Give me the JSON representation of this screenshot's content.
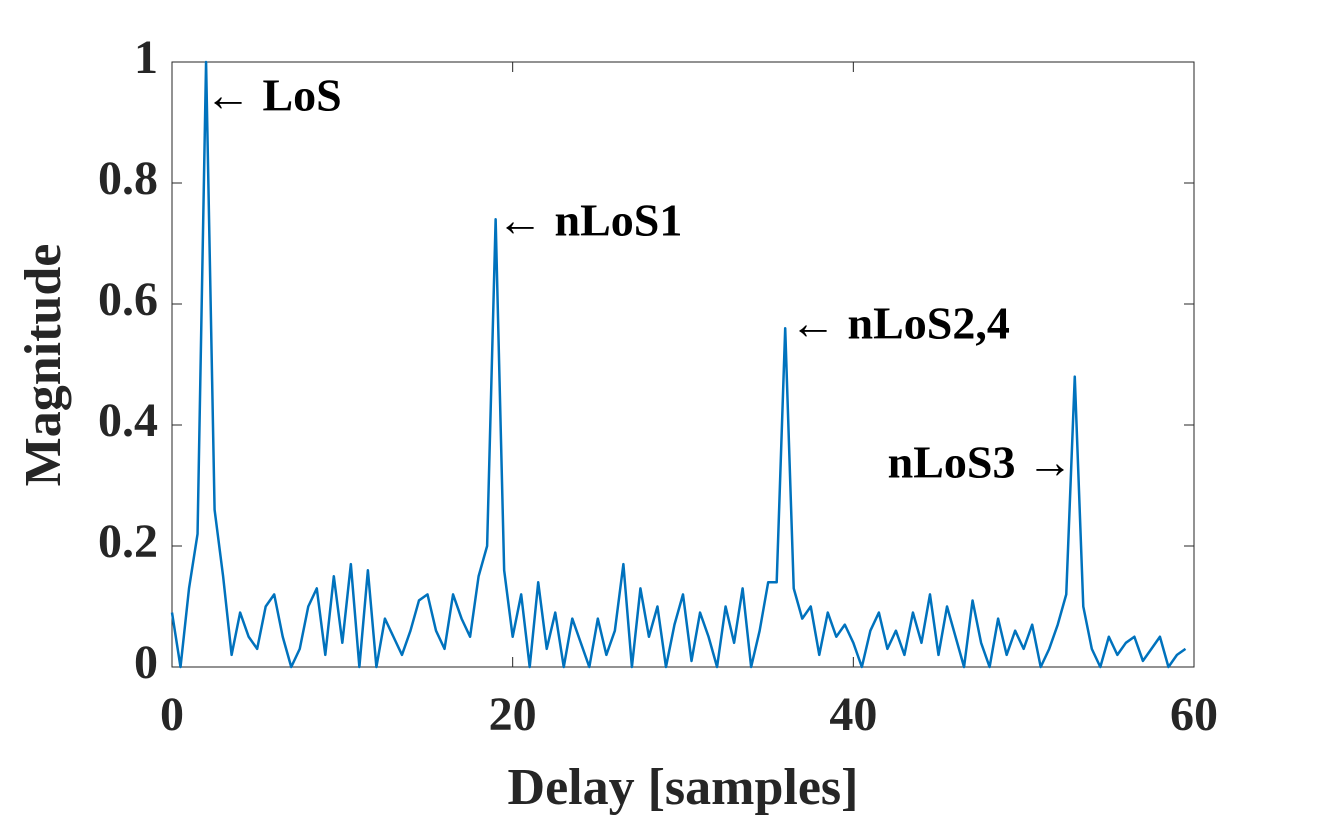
{
  "chart_data": {
    "type": "line",
    "xlabel": "Delay [samples]",
    "ylabel": "Magnitude",
    "annotations": [
      "← LoS",
      "← nLoS1",
      "← nLoS2,4",
      "nLoS3 →"
    ],
    "x": [
      0,
      0.5,
      1,
      1.5,
      2,
      2.5,
      3,
      3.5,
      4,
      4.5,
      5,
      5.5,
      6,
      6.5,
      7,
      7.5,
      8,
      8.5,
      9,
      9.5,
      10,
      10.5,
      11,
      11.5,
      12,
      12.5,
      13,
      13.5,
      14,
      14.5,
      15,
      15.5,
      16,
      16.5,
      17,
      17.5,
      18,
      18.5,
      19,
      19.5,
      20,
      20.5,
      21,
      21.5,
      22,
      22.5,
      23,
      23.5,
      24,
      24.5,
      25,
      25.5,
      26,
      26.5,
      27,
      27.5,
      28,
      28.5,
      29,
      29.5,
      30,
      30.5,
      31,
      31.5,
      32,
      32.5,
      33,
      33.5,
      34,
      34.5,
      35,
      35.5,
      36,
      36.5,
      37,
      37.5,
      38,
      38.5,
      39,
      39.5,
      40,
      40.5,
      41,
      41.5,
      42,
      42.5,
      43,
      43.5,
      44,
      44.5,
      45,
      45.5,
      46,
      46.5,
      47,
      47.5,
      48,
      48.5,
      49,
      49.5,
      50,
      50.5,
      51,
      51.5,
      52,
      52.5,
      53,
      53.5,
      54,
      54.5,
      55,
      55.5,
      56,
      56.5,
      57,
      57.5,
      58,
      58.5,
      59,
      59.5
    ],
    "series": [
      {
        "color": "#0072bd",
        "values": [
          0.09,
          0.0,
          0.13,
          0.22,
          1.0,
          0.26,
          0.15,
          0.02,
          0.09,
          0.05,
          0.03,
          0.1,
          0.12,
          0.05,
          0.0,
          0.03,
          0.1,
          0.13,
          0.02,
          0.15,
          0.04,
          0.17,
          0.0,
          0.16,
          0.0,
          0.08,
          0.05,
          0.02,
          0.06,
          0.11,
          0.12,
          0.06,
          0.03,
          0.12,
          0.08,
          0.05,
          0.15,
          0.2,
          0.74,
          0.16,
          0.05,
          0.12,
          0.0,
          0.14,
          0.03,
          0.09,
          0.0,
          0.08,
          0.04,
          0.0,
          0.08,
          0.02,
          0.06,
          0.17,
          0.0,
          0.13,
          0.05,
          0.1,
          0.0,
          0.07,
          0.12,
          0.01,
          0.09,
          0.05,
          0.0,
          0.1,
          0.04,
          0.13,
          0.0,
          0.06,
          0.14,
          0.14,
          0.56,
          0.13,
          0.08,
          0.1,
          0.02,
          0.09,
          0.05,
          0.07,
          0.04,
          0.0,
          0.06,
          0.09,
          0.03,
          0.06,
          0.02,
          0.09,
          0.04,
          0.12,
          0.02,
          0.1,
          0.05,
          0.0,
          0.11,
          0.04,
          0.0,
          0.08,
          0.02,
          0.06,
          0.03,
          0.07,
          0.0,
          0.03,
          0.07,
          0.12,
          0.48,
          0.1,
          0.03,
          0.0,
          0.05,
          0.02,
          0.04,
          0.05,
          0.01,
          0.03,
          0.05,
          0.0,
          0.02,
          0.03
        ]
      }
    ],
    "xlim": [
      0,
      60
    ],
    "xticks": [
      0,
      20,
      40,
      60
    ],
    "ylim": [
      0,
      1
    ],
    "yticks": [
      0,
      0.2,
      0.4,
      0.6,
      0.8,
      1
    ]
  }
}
